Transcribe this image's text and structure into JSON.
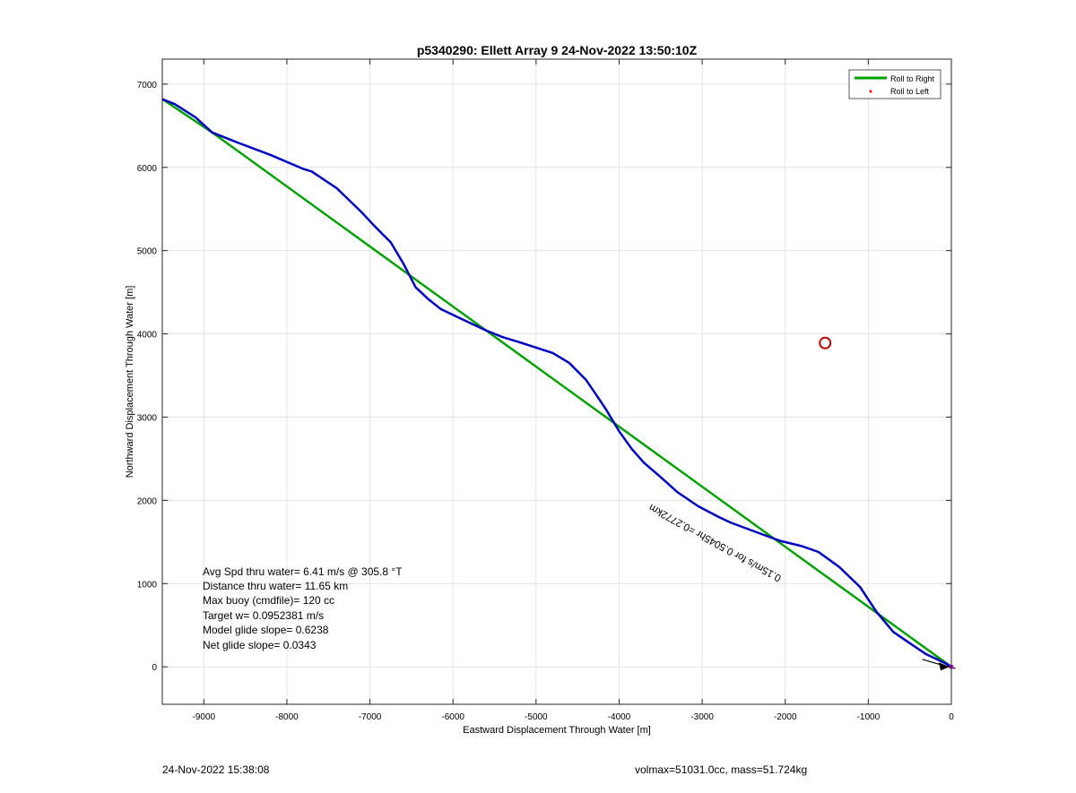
{
  "chart_data": {
    "type": "line",
    "title": "p5340290: Ellett Array 9 24-Nov-2022 13:50:10Z",
    "xlabel": "Eastward Displacement Through Water [m]",
    "ylabel": "Northward Displacement Through Water [m]",
    "xlim": [
      -9500,
      0
    ],
    "ylim": [
      -450,
      7300
    ],
    "xticks": [
      -9000,
      -8000,
      -7000,
      -6000,
      -5000,
      -4000,
      -3000,
      -2000,
      -1000,
      0
    ],
    "yticks": [
      0,
      1000,
      2000,
      3000,
      4000,
      5000,
      6000,
      7000
    ],
    "grid": true,
    "legend_position": "top-right",
    "legend": [
      {
        "label": "Roll to Right",
        "color": "#00a000",
        "marker": "line"
      },
      {
        "label": "Roll to Left",
        "color": "#ff0000",
        "marker": "dot"
      }
    ],
    "series": [
      {
        "color": "#00a000",
        "x": [
          -9500,
          -8900,
          0
        ],
        "y": [
          6820,
          6420,
          0
        ]
      },
      {
        "color": "#0000c0",
        "x": [
          -9500,
          -9350,
          -9100,
          -8900,
          -8600,
          -8200,
          -7800,
          -7700,
          -7400,
          -7100,
          -6950,
          -6750,
          -6600,
          -6450,
          -6300,
          -6150,
          -5900,
          -5600,
          -5400,
          -5200,
          -4800,
          -4600,
          -4400,
          -4250,
          -4150,
          -4000,
          -3850,
          -3700,
          -3500,
          -3300,
          -3050,
          -2800,
          -2650,
          -2300,
          -2050,
          -1800,
          -1600,
          -1350,
          -1100,
          -900,
          -700,
          -450,
          -300,
          -150,
          -50,
          0
        ],
        "y": [
          6820,
          6760,
          6600,
          6420,
          6300,
          6150,
          5980,
          5950,
          5750,
          5460,
          5300,
          5100,
          4850,
          4560,
          4420,
          4300,
          4180,
          4040,
          3960,
          3900,
          3770,
          3650,
          3450,
          3230,
          3080,
          2830,
          2620,
          2450,
          2280,
          2100,
          1930,
          1800,
          1730,
          1600,
          1510,
          1450,
          1380,
          1200,
          960,
          660,
          420,
          250,
          150,
          80,
          30,
          0
        ]
      }
    ],
    "marker_circle": {
      "x": -1520,
      "y": 3890,
      "color": "#c00000"
    },
    "annotations": [
      "Avg Spd thru water=  6.41 m/s @ 305.8 °T",
      "Distance thru water= 11.65 km",
      "Max buoy (cmdfile)= 120 cc",
      "Target w= 0.0952381 m/s",
      "Model glide slope= 0.6238",
      "Net glide slope= 0.0343"
    ],
    "rotated_annotation": "0.15m/s for 0.5045hr =0.2772km",
    "arrow_color": "#000000",
    "arrows": [
      [
        -900,
        110,
        -30,
        20
      ],
      [
        -700,
        60,
        -20,
        10
      ],
      [
        -600,
        30,
        -15,
        5
      ],
      [
        -500,
        0,
        -10,
        0
      ]
    ]
  },
  "footer": {
    "timestamp": "24-Nov-2022 15:38:08",
    "info": "volmax=51031.0cc, mass=51.724kg"
  }
}
